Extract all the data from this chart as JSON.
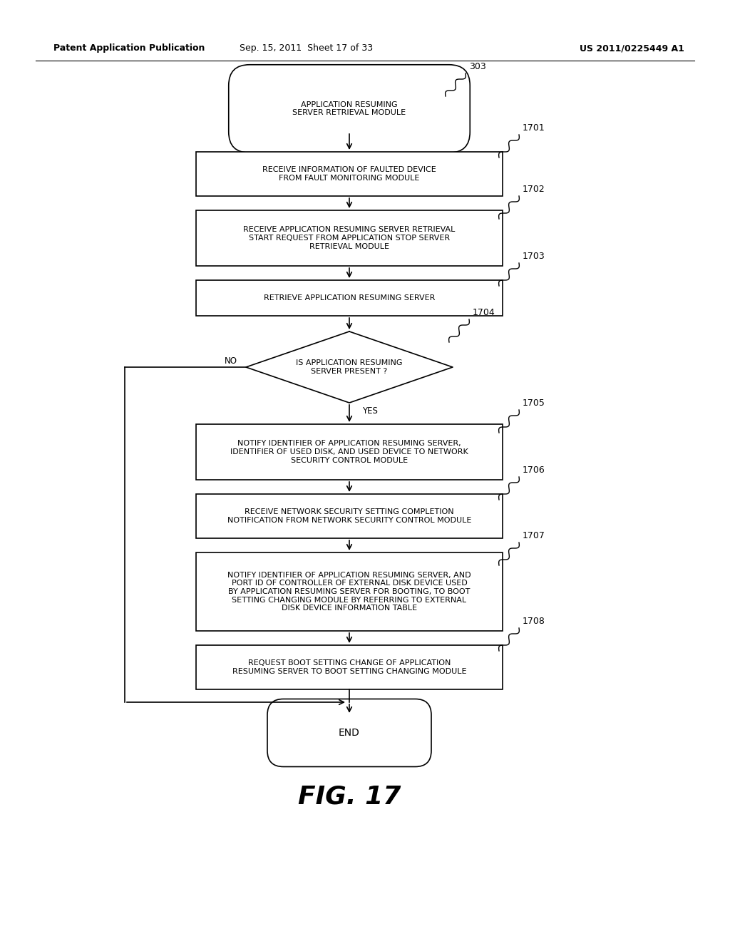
{
  "header_left": "Patent Application Publication",
  "header_mid": "Sep. 15, 2011  Sheet 17 of 33",
  "header_right": "US 2011/0225449 A1",
  "title_label": "FIG. 17",
  "start_label": "303",
  "start_text": "APPLICATION RESUMING\nSERVER RETRIEVAL MODULE",
  "box1_id": "1701",
  "box1_text": "RECEIVE INFORMATION OF FAULTED DEVICE\nFROM FAULT MONITORING MODULE",
  "box2_id": "1702",
  "box2_text": "RECEIVE APPLICATION RESUMING SERVER RETRIEVAL\nSTART REQUEST FROM APPLICATION STOP SERVER\nRETRIEVAL MODULE",
  "box3_id": "1703",
  "box3_text": "RETRIEVE APPLICATION RESUMING SERVER",
  "diamond_id": "1704",
  "diamond_text": "IS APPLICATION RESUMING\nSERVER PRESENT ?",
  "box5_id": "1705",
  "box5_text": "NOTIFY IDENTIFIER OF APPLICATION RESUMING SERVER,\nIDENTIFIER OF USED DISK, AND USED DEVICE TO NETWORK\nSECURITY CONTROL MODULE",
  "box6_id": "1706",
  "box6_text": "RECEIVE NETWORK SECURITY SETTING COMPLETION\nNOTIFICATION FROM NETWORK SECURITY CONTROL MODULE",
  "box7_id": "1707",
  "box7_text": "NOTIFY IDENTIFIER OF APPLICATION RESUMING SERVER, AND\nPORT ID OF CONTROLLER OF EXTERNAL DISK DEVICE USED\nBY APPLICATION RESUMING SERVER FOR BOOTING, TO BOOT\nSETTING CHANGING MODULE BY REFERRING TO EXTERNAL\nDISK DEVICE INFORMATION TABLE",
  "box8_id": "1708",
  "box8_text": "REQUEST BOOT SETTING CHANGE OF APPLICATION\nRESUMING SERVER TO BOOT SETTING CHANGING MODULE",
  "end_text": "END",
  "bg_color": "#ffffff",
  "box_edge_color": "#000000",
  "text_color": "#000000",
  "line_color": "#000000",
  "label_fontsize": 9,
  "text_fontsize": 8,
  "header_fontsize": 9
}
